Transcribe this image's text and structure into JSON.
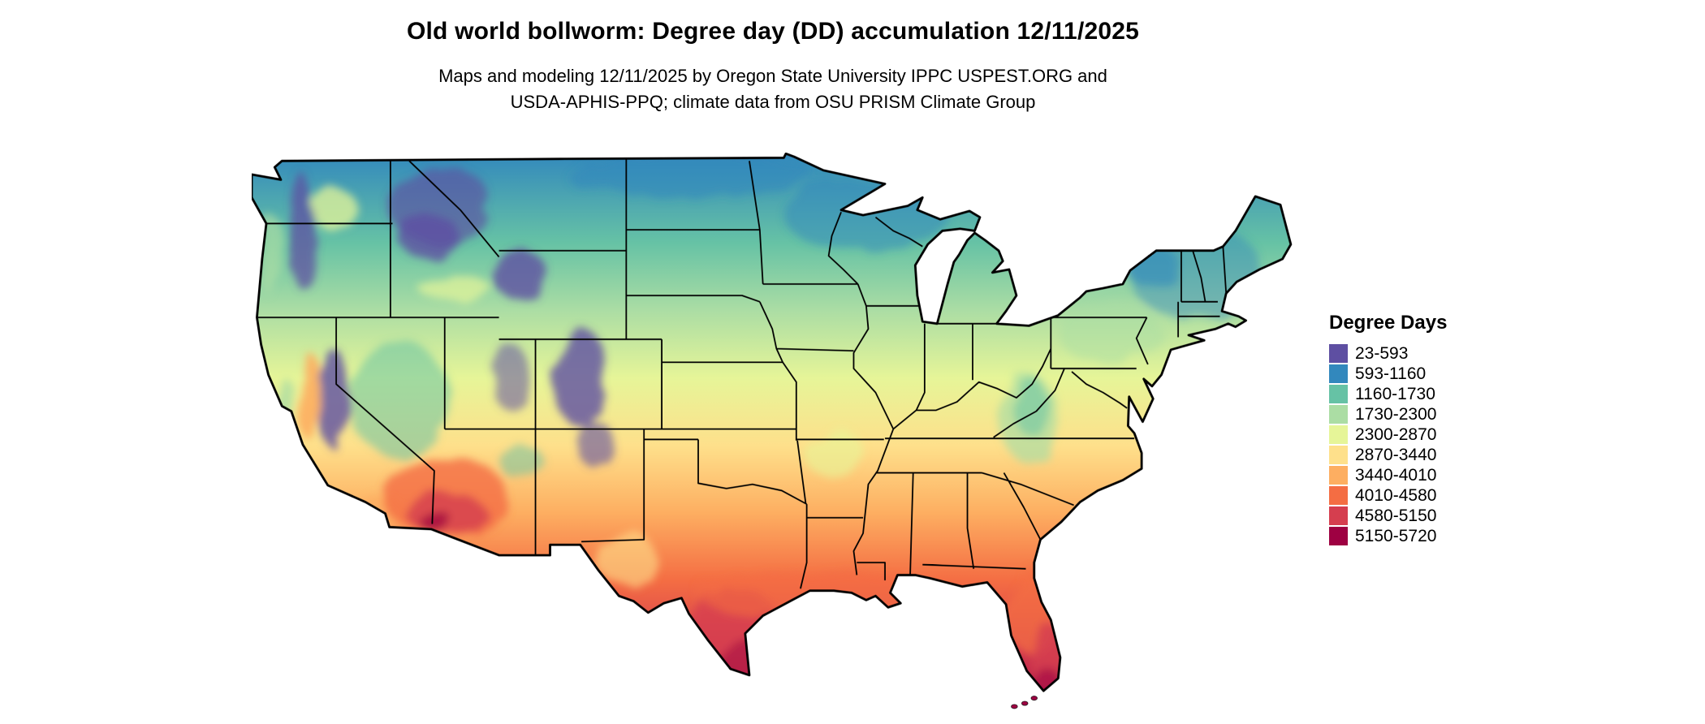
{
  "header": {
    "title": "Old world bollworm: Degree day (DD) accumulation 12/11/2025",
    "subtitle_line1": "Maps and modeling 12/11/2025 by Oregon State University IPPC USPEST.ORG and",
    "subtitle_line2": "USDA-APHIS-PPQ; climate data from OSU PRISM Climate Group"
  },
  "legend": {
    "title": "Degree Days",
    "items": [
      {
        "range": "23-593",
        "color": "#5e4fa2"
      },
      {
        "range": "593-1160",
        "color": "#3288bd"
      },
      {
        "range": "1160-1730",
        "color": "#66c2a5"
      },
      {
        "range": "1730-2300",
        "color": "#abdda4"
      },
      {
        "range": "2300-2870",
        "color": "#e6f598"
      },
      {
        "range": "2870-3440",
        "color": "#fee08b"
      },
      {
        "range": "3440-4010",
        "color": "#fdae61"
      },
      {
        "range": "4010-4580",
        "color": "#f46d43"
      },
      {
        "range": "4580-5150",
        "color": "#d53e4f"
      },
      {
        "range": "5150-5720",
        "color": "#9e0142"
      }
    ]
  }
}
